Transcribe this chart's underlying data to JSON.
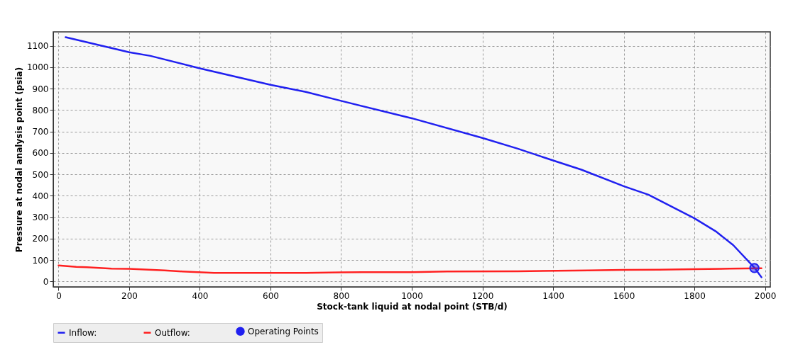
{
  "chart_data": {
    "type": "line",
    "xlabel": "Stock-tank liquid at nodal point (STB/d)",
    "ylabel": "Pressure at nodal analysis point (psia)",
    "xlim": [
      -15,
      2015
    ],
    "ylim": [
      -25,
      1165
    ],
    "xticks": [
      0,
      200,
      400,
      600,
      800,
      1000,
      1200,
      1400,
      1600,
      1800,
      2000
    ],
    "yticks": [
      0,
      100,
      200,
      300,
      400,
      500,
      600,
      700,
      800,
      900,
      1000,
      1100
    ],
    "grid": true,
    "legend": "bottom",
    "line_style": "solid",
    "series": [
      {
        "name": "Inflow:",
        "color": "#2020f0",
        "x": [
          20,
          200,
          260,
          400,
          600,
          700,
          800,
          1000,
          1200,
          1300,
          1400,
          1480,
          1600,
          1670,
          1800,
          1860,
          1910,
          1970,
          1990
        ],
        "values": [
          1140,
          1070,
          1053,
          995,
          918,
          885,
          843,
          762,
          670,
          620,
          565,
          522,
          445,
          405,
          295,
          235,
          170,
          65,
          20
        ]
      },
      {
        "name": "Outflow:",
        "color": "#ff2020",
        "x": [
          0,
          50,
          80,
          150,
          200,
          300,
          350,
          440,
          700,
          800,
          1000,
          1100,
          1300,
          1500,
          1600,
          1700,
          1800,
          1900,
          1990
        ],
        "values": [
          75,
          68,
          67,
          60,
          59,
          52,
          47,
          40,
          40,
          43,
          44,
          47,
          48,
          52,
          54,
          55,
          58,
          60,
          62
        ]
      },
      {
        "name": "Operating Points",
        "type": "scatter",
        "marker": "circle",
        "color": "#2020f0",
        "x": [
          1970
        ],
        "values": [
          63
        ]
      }
    ]
  }
}
